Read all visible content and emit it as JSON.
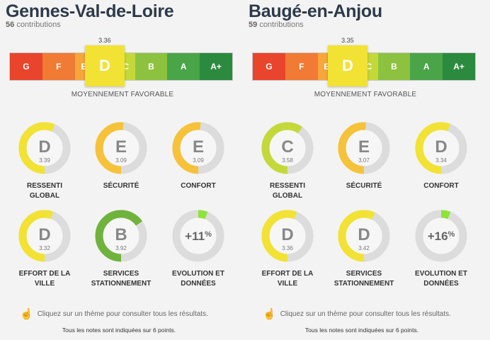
{
  "colors": {
    "G": "#e8452c",
    "F": "#f17a34",
    "E": "#f6a63a",
    "D": "#f2e234",
    "C": "#c5d83a",
    "B": "#8cc23f",
    "A": "#4aa548",
    "A+": "#2b8a3e",
    "ring_track": "#dcdcdc"
  },
  "scale_labels": [
    "G",
    "F",
    "E",
    "D",
    "C",
    "B",
    "A",
    "A+"
  ],
  "panels": [
    {
      "city": "Gennes-Val-de-Loire",
      "contributions_count": "56",
      "contributions_label": "contributions",
      "score": "3.36",
      "grade": "D",
      "verdict": "MOYENNEMENT FAVORABLE",
      "gauges": [
        {
          "grade": "D",
          "score": "3.39",
          "label": [
            "RESSENTI",
            "GLOBAL"
          ],
          "fraction": 0.565,
          "color": "#f2e234"
        },
        {
          "grade": "E",
          "score": "3.09",
          "label": [
            "SÉCURITÉ"
          ],
          "fraction": 0.515,
          "color": "#f6c23a"
        },
        {
          "grade": "E",
          "score": "3.09",
          "label": [
            "CONFORT"
          ],
          "fraction": 0.515,
          "color": "#f6c23a"
        },
        {
          "grade": "D",
          "score": "3.32",
          "label": [
            "EFFORT DE LA",
            "VILLE"
          ],
          "fraction": 0.553,
          "color": "#f2e234"
        },
        {
          "grade": "B",
          "score": "3.92",
          "label": [
            "SERVICES",
            "STATIONNEMENT"
          ],
          "fraction": 0.653,
          "color": "#6fb33d"
        },
        {
          "evolution": "+11",
          "unit": "%",
          "label": [
            "EVOLUTION ET",
            "DONNÉES"
          ],
          "fraction": 0.06,
          "color": "#8ee33a"
        }
      ],
      "hint": "Cliquez sur un thème pour consulter tous les résultats.",
      "note": "Tous les notes sont indiquées sur 6 points."
    },
    {
      "city": "Baugé-en-Anjou",
      "contributions_count": "59",
      "contributions_label": "contributions",
      "score": "3.35",
      "grade": "D",
      "verdict": "MOYENNEMENT FAVORABLE",
      "gauges": [
        {
          "grade": "C",
          "score": "3.58",
          "label": [
            "RESSENTI",
            "GLOBAL"
          ],
          "fraction": 0.597,
          "color": "#c5d83a"
        },
        {
          "grade": "E",
          "score": "3.07",
          "label": [
            "SÉCURITÉ"
          ],
          "fraction": 0.512,
          "color": "#f6c23a"
        },
        {
          "grade": "D",
          "score": "3.34",
          "label": [
            "CONFORT"
          ],
          "fraction": 0.557,
          "color": "#f2e234"
        },
        {
          "grade": "D",
          "score": "3.36",
          "label": [
            "EFFORT DE LA",
            "VILLE"
          ],
          "fraction": 0.56,
          "color": "#f2e234"
        },
        {
          "grade": "D",
          "score": "3.42",
          "label": [
            "SERVICES",
            "STATIONNEMENT"
          ],
          "fraction": 0.57,
          "color": "#f2e234"
        },
        {
          "evolution": "+16",
          "unit": "%",
          "label": [
            "EVOLUTION ET",
            "DONNÉES"
          ],
          "fraction": 0.06,
          "color": "#8ee33a"
        }
      ],
      "hint": "Cliquez sur un thème pour consulter tous les résultats.",
      "note": "Tous les notes sont indiquées sur 6 points."
    }
  ]
}
